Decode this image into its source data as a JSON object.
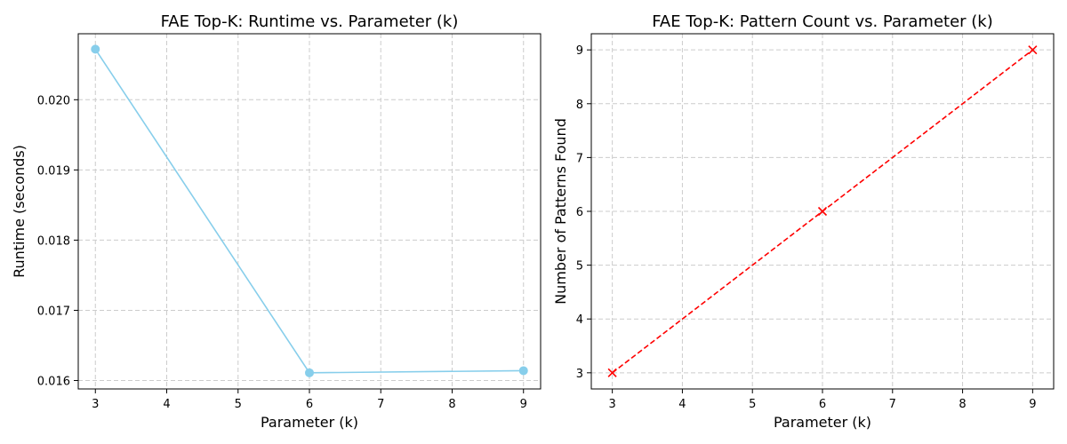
{
  "chart_data": [
    {
      "type": "line",
      "title": "FAE Top-K: Runtime vs. Parameter (k)",
      "xlabel": "Parameter (k)",
      "ylabel": "Runtime (seconds)",
      "xlim": [
        2.76,
        9.24
      ],
      "ylim": [
        0.01588,
        0.02094
      ],
      "xticks": [
        3,
        4,
        5,
        6,
        7,
        8,
        9
      ],
      "yticks": [
        0.016,
        0.017,
        0.018,
        0.019,
        0.02
      ],
      "ytick_labels": [
        "0.016",
        "0.017",
        "0.018",
        "0.019",
        "0.020"
      ],
      "grid": true,
      "series": [
        {
          "x": [
            3,
            6,
            9
          ],
          "y": [
            0.02072,
            0.01611,
            0.01614
          ],
          "color": "#87ceeb",
          "marker": "circle",
          "linestyle": "solid"
        }
      ]
    },
    {
      "type": "line",
      "title": "FAE Top-K: Pattern Count vs. Parameter (k)",
      "xlabel": "Parameter (k)",
      "ylabel": "Number of Patterns Found",
      "xlim": [
        2.7,
        9.3
      ],
      "ylim": [
        2.7,
        9.3
      ],
      "xticks": [
        3,
        4,
        5,
        6,
        7,
        8,
        9
      ],
      "yticks": [
        3,
        4,
        5,
        6,
        7,
        8,
        9
      ],
      "ytick_labels": [
        "3",
        "4",
        "5",
        "6",
        "7",
        "8",
        "9"
      ],
      "grid": true,
      "series": [
        {
          "x": [
            3,
            6,
            9
          ],
          "y": [
            3,
            6,
            9
          ],
          "color": "#ff0000",
          "marker": "x",
          "linestyle": "dashed"
        }
      ]
    }
  ]
}
